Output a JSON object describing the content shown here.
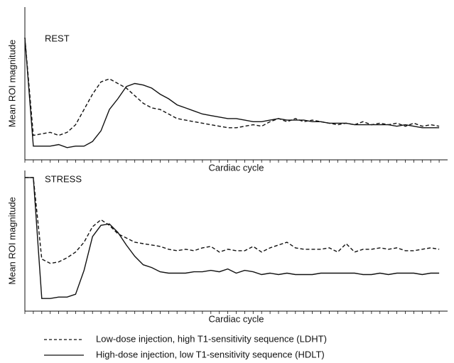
{
  "chart_data": [
    {
      "type": "line",
      "annotation": "REST",
      "y_label": "Mean ROI magnitude",
      "x_label": "Cardiac cycle",
      "xlim": [
        0,
        50
      ],
      "ylim": [
        0,
        100
      ],
      "x": [
        0,
        1,
        2,
        3,
        4,
        5,
        6,
        7,
        8,
        9,
        10,
        11,
        12,
        13,
        14,
        15,
        16,
        17,
        18,
        19,
        20,
        21,
        22,
        23,
        24,
        25,
        26,
        27,
        28,
        29,
        30,
        31,
        32,
        33,
        34,
        35,
        36,
        37,
        38,
        39,
        40,
        41,
        42,
        43,
        44,
        45,
        46,
        47,
        48,
        49
      ],
      "series": [
        {
          "name": "Low-dose injection, high T1-sensitivity sequence (LDHT)",
          "style": "dashed",
          "color": "#111111",
          "values": [
            80,
            16,
            17,
            18,
            16,
            18,
            23,
            33,
            43,
            51,
            53,
            50,
            47,
            42,
            37,
            34,
            33,
            30,
            27,
            26,
            25,
            24,
            23,
            22,
            21,
            21,
            22,
            23,
            22,
            25,
            27,
            25,
            27,
            25,
            26,
            25,
            24,
            23,
            24,
            23,
            25,
            23,
            24,
            23,
            24,
            22,
            24,
            22,
            23,
            22
          ]
        },
        {
          "name": "High-dose injection, low T1-sensitivity sequence (HDLT)",
          "style": "solid",
          "color": "#111111",
          "values": [
            80,
            9,
            9,
            9,
            10,
            8,
            9,
            9,
            12,
            19,
            33,
            40,
            48,
            50,
            49,
            47,
            43,
            40,
            36,
            34,
            32,
            30,
            29,
            28,
            27,
            27,
            26,
            25,
            25,
            26,
            27,
            26,
            26,
            26,
            25,
            25,
            24,
            24,
            24,
            23,
            23,
            23,
            23,
            23,
            22,
            23,
            22,
            21,
            21,
            21
          ]
        }
      ]
    },
    {
      "type": "line",
      "annotation": "STRESS",
      "y_label": "Mean ROI magnitude",
      "x_label": "Cardiac cycle",
      "xlim": [
        0,
        50
      ],
      "ylim": [
        0,
        100
      ],
      "x": [
        0,
        1,
        2,
        3,
        4,
        5,
        6,
        7,
        8,
        9,
        10,
        11,
        12,
        13,
        14,
        15,
        16,
        17,
        18,
        19,
        20,
        21,
        22,
        23,
        24,
        25,
        26,
        27,
        28,
        29,
        30,
        31,
        32,
        33,
        34,
        35,
        36,
        37,
        38,
        39,
        40,
        41,
        42,
        43,
        44,
        45,
        46,
        47,
        48,
        49
      ],
      "series": [
        {
          "style": "dashed",
          "color": "#111111",
          "values": [
            95,
            95,
            37,
            34,
            35,
            38,
            42,
            49,
            60,
            65,
            61,
            55,
            52,
            49,
            48,
            47,
            46,
            44,
            43,
            44,
            43,
            45,
            46,
            42,
            44,
            43,
            43,
            46,
            42,
            45,
            47,
            49,
            45,
            44,
            44,
            44,
            45,
            42,
            48,
            42,
            44,
            44,
            45,
            44,
            45,
            43,
            43,
            44,
            45,
            44
          ]
        },
        {
          "style": "solid",
          "color": "#111111",
          "values": [
            95,
            95,
            9,
            9,
            10,
            10,
            12,
            29,
            53,
            61,
            62,
            56,
            47,
            39,
            33,
            31,
            28,
            27,
            27,
            27,
            28,
            28,
            29,
            28,
            30,
            27,
            29,
            28,
            26,
            27,
            26,
            27,
            26,
            26,
            26,
            27,
            27,
            27,
            27,
            27,
            26,
            26,
            27,
            26,
            27,
            27,
            27,
            26,
            27,
            27
          ]
        }
      ]
    }
  ]
}
